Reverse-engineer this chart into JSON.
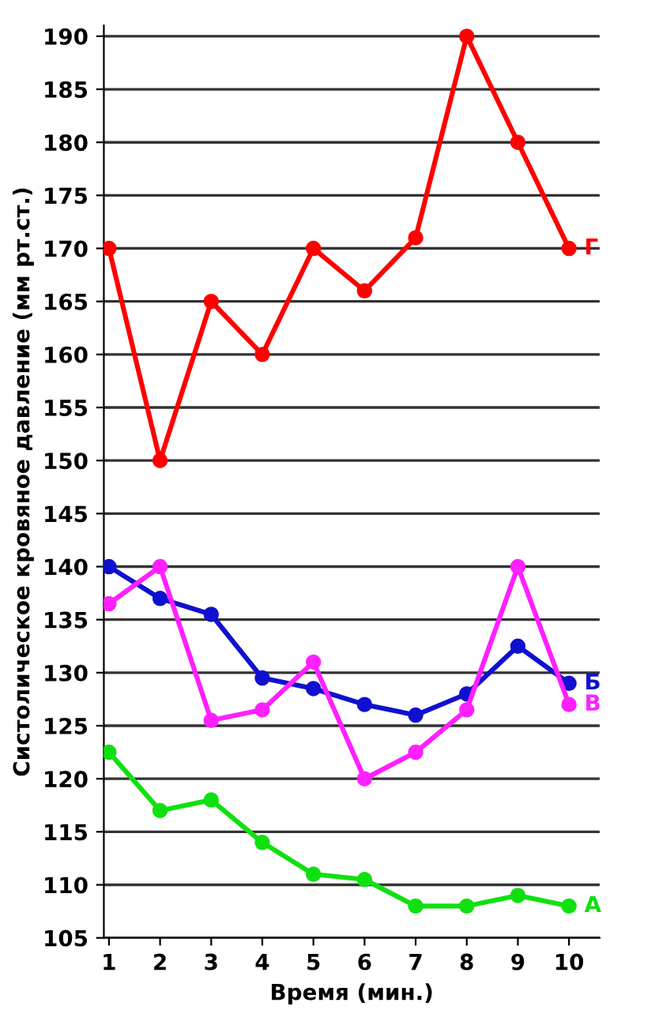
{
  "chart_data": {
    "type": "line",
    "xlabel": "Время (мин.)",
    "ylabel": "Систолическое кровяное давление (мм рт.ст.)",
    "categories": [
      "1",
      "2",
      "3",
      "4",
      "5",
      "6",
      "7",
      "8",
      "9",
      "10"
    ],
    "series": [
      {
        "name": "Г",
        "color": "#ff0000",
        "values": [
          170,
          150,
          165,
          160,
          170,
          166,
          171,
          190,
          180,
          170
        ]
      },
      {
        "name": "Б",
        "color": "#1010d0",
        "values": [
          140,
          137,
          135.5,
          129.5,
          128.5,
          127,
          126,
          128,
          132.5,
          129
        ]
      },
      {
        "name": "В",
        "color": "#ff20ff",
        "values": [
          136.5,
          140,
          125.5,
          126.5,
          131,
          120,
          122.5,
          126.5,
          140,
          127
        ]
      },
      {
        "name": "А",
        "color": "#10e010",
        "values": [
          122.5,
          117,
          118,
          114,
          111,
          110.5,
          108,
          108,
          109,
          108
        ]
      }
    ],
    "ylim": [
      105,
      191
    ],
    "yticks": [
      105,
      110,
      115,
      120,
      125,
      130,
      135,
      140,
      145,
      150,
      155,
      160,
      165,
      170,
      175,
      180,
      185,
      190
    ],
    "grid": "y",
    "legend": false,
    "marker": "circle",
    "line_style": "solid"
  }
}
